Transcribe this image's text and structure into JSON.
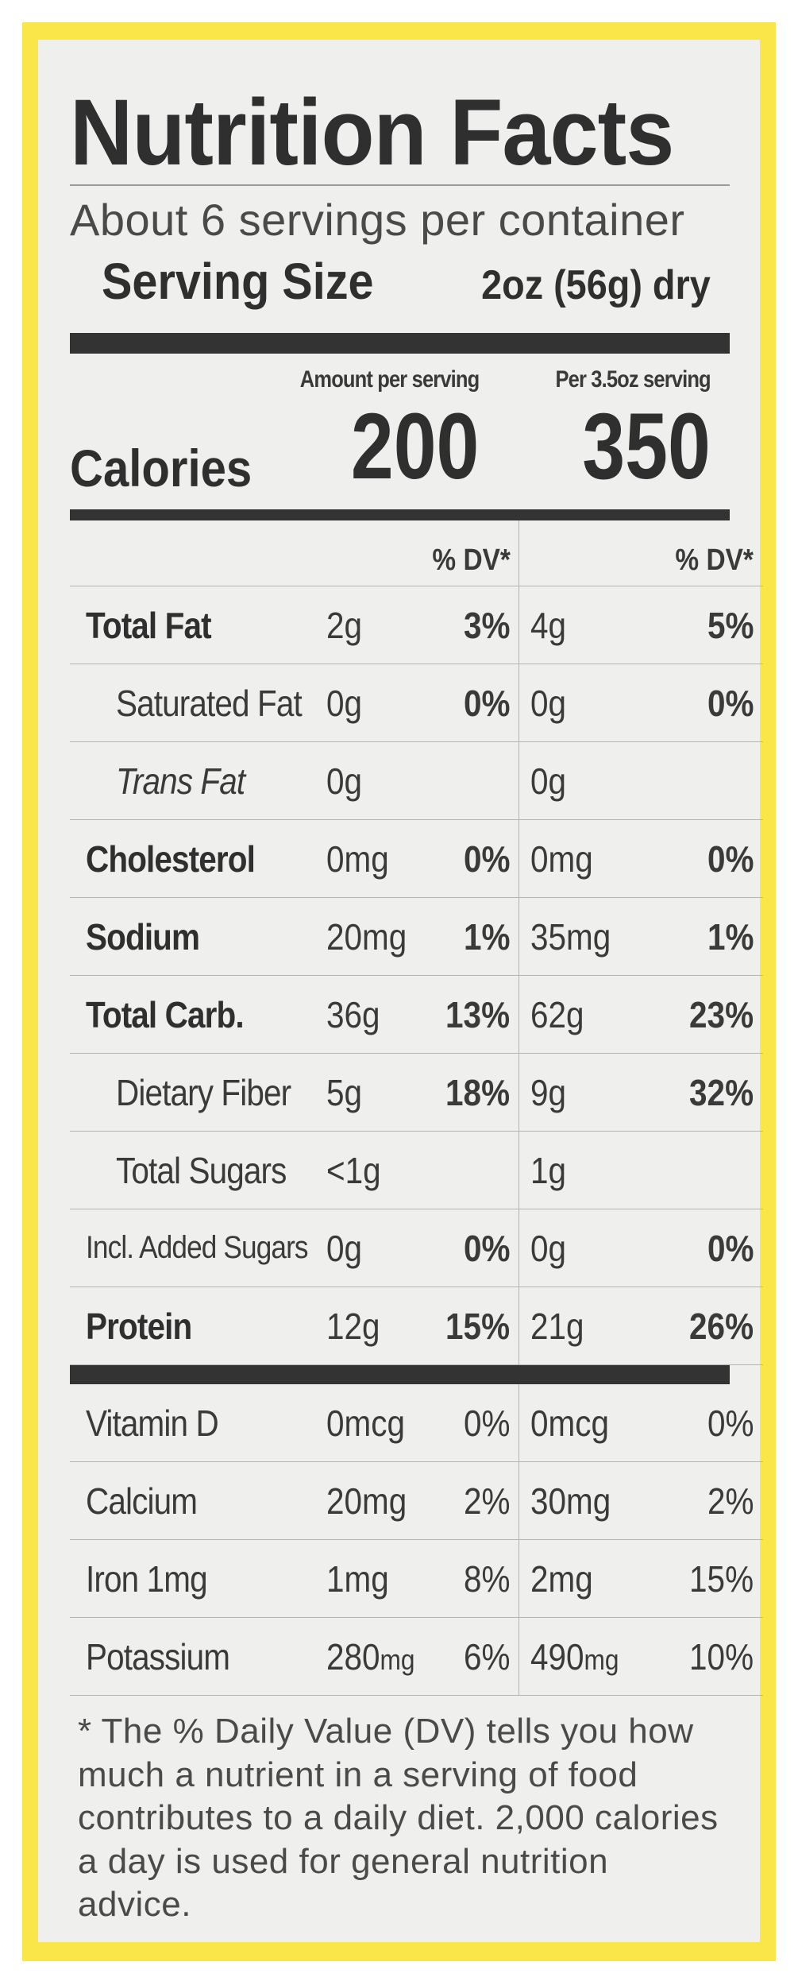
{
  "label": {
    "title": "Nutrition Facts",
    "servings": "About 6 servings per container",
    "serving_size_label": "Serving Size",
    "serving_size_value": "2oz (56g) dry",
    "col1_head": "Amount per serving",
    "col2_head": "Per 3.5oz serving",
    "calories_label": "Calories",
    "calories_1": "200",
    "calories_2": "350",
    "dv_head_1": "% DV*",
    "dv_head_2": "% DV*"
  },
  "nutrients": [
    {
      "name": "Total Fat",
      "amt1": "2g",
      "dv1": "3%",
      "amt2": "4g",
      "dv2": "5%"
    },
    {
      "name": "Saturated Fat",
      "amt1": "0g",
      "dv1": "0%",
      "amt2": "0g",
      "dv2": "0%"
    },
    {
      "name": "Trans Fat",
      "amt1": "0g",
      "dv1": "",
      "amt2": "0g",
      "dv2": ""
    },
    {
      "name": "Cholesterol",
      "amt1": "0mg",
      "dv1": "0%",
      "amt2": "0mg",
      "dv2": "0%"
    },
    {
      "name": "Sodium",
      "amt1": "20mg",
      "dv1": "1%",
      "amt2": "35mg",
      "dv2": "1%"
    },
    {
      "name": "Total Carb.",
      "amt1": "36g",
      "dv1": "13%",
      "amt2": "62g",
      "dv2": "23%"
    },
    {
      "name": "Dietary Fiber",
      "amt1": "5g",
      "dv1": "18%",
      "amt2": "9g",
      "dv2": "32%"
    },
    {
      "name": "Total Sugars",
      "amt1": "<1g",
      "dv1": "",
      "amt2": "1g",
      "dv2": ""
    },
    {
      "name": "Incl. Added Sugars",
      "amt1": "0g",
      "dv1": "0%",
      "amt2": "0g",
      "dv2": "0%"
    },
    {
      "name": "Protein",
      "amt1": "12g",
      "dv1": "15%",
      "amt2": "21g",
      "dv2": "26%"
    }
  ],
  "vitamins": [
    {
      "name": "Vitamin D",
      "amt1": "0mcg",
      "dv1": "0%",
      "amt2": "0mcg",
      "dv2": "0%"
    },
    {
      "name": "Calcium",
      "amt1": "20mg",
      "dv1": "2%",
      "amt2": "30mg",
      "dv2": "2%"
    },
    {
      "name": "Iron 1mg",
      "amt1": "1mg",
      "dv1": "8%",
      "amt2": "2mg",
      "dv2": "15%"
    },
    {
      "name": "Potassium",
      "amt1_num": "280",
      "amt1_unit": "mg",
      "dv1": "6%",
      "amt2_num": "490",
      "amt2_unit": "mg",
      "dv2": "10%"
    }
  ],
  "footnote": "* The % Daily Value (DV) tells you how much a nutrient in a serving of food contributes to a daily diet. 2,000 calories a day is used for general nutrition advice.",
  "colors": {
    "border": "#fbe64a",
    "panel": "#efefed",
    "bar": "#333333"
  }
}
